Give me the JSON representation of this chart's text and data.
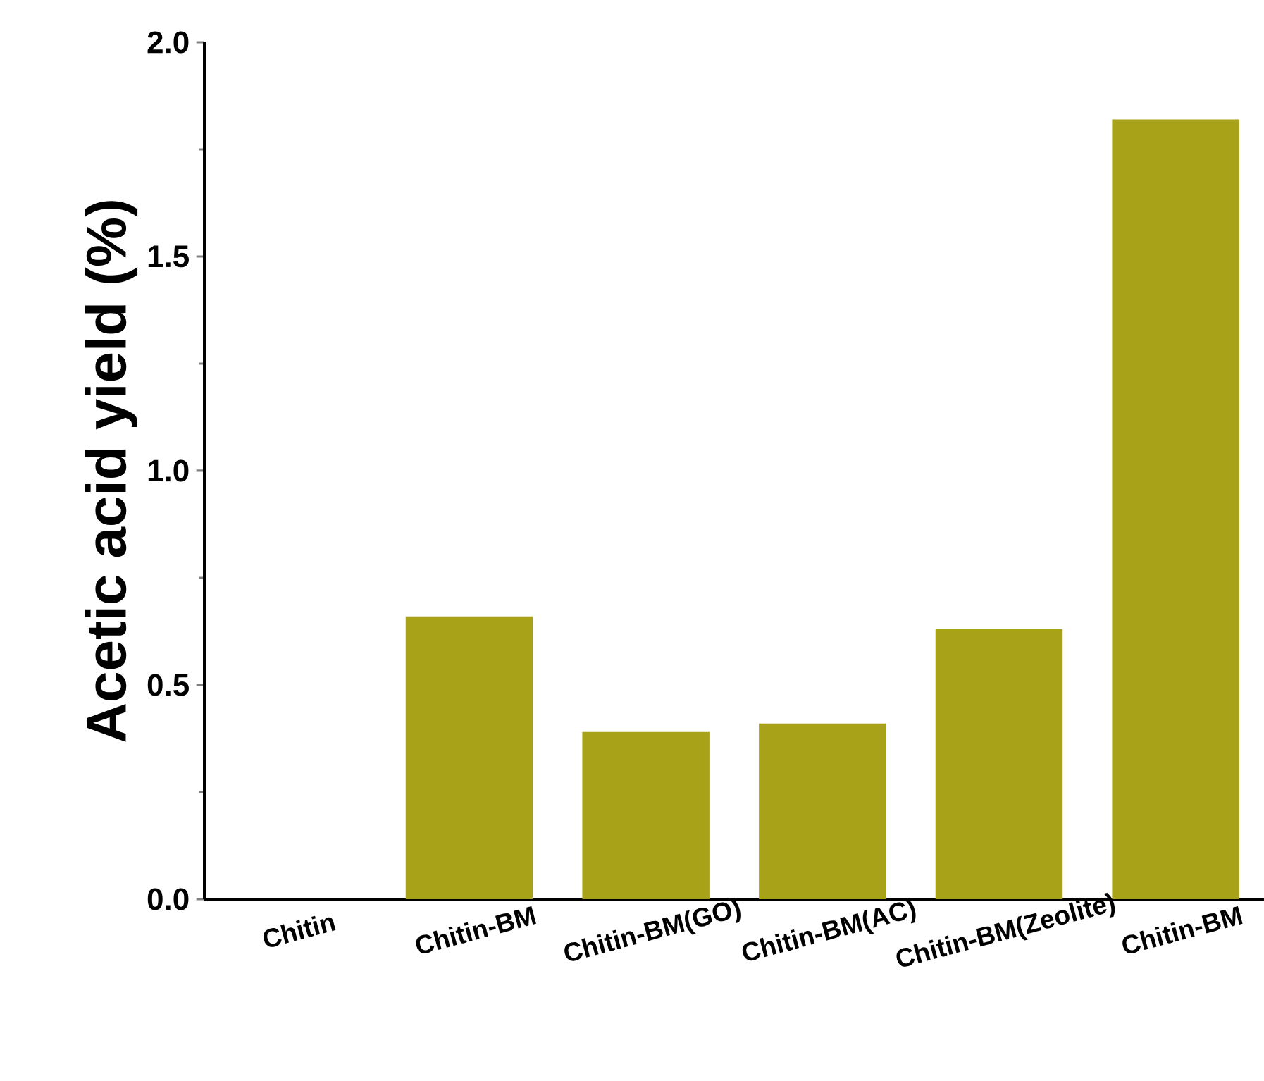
{
  "chart_data": {
    "type": "bar",
    "ylabel": "Acetic acid yield (%)",
    "categories": [
      "Chitin",
      "Chitin-BM",
      "Chitin-BM(GO)",
      "Chitin-BM(AC)",
      "Chitin-BM(Zeolite)",
      "Chitin-BM"
    ],
    "values": [
      0,
      0.66,
      0.39,
      0.41,
      0.63,
      1.82
    ],
    "color": "#a8a218",
    "ylim": [
      0,
      2
    ],
    "yticks": [
      {
        "value": 0,
        "label": "0.0"
      },
      {
        "value": 0.5,
        "label": "0.5"
      },
      {
        "value": 1,
        "label": "1.0"
      },
      {
        "value": 1.5,
        "label": "1.5"
      },
      {
        "value": 2,
        "label": "2.0"
      }
    ]
  }
}
